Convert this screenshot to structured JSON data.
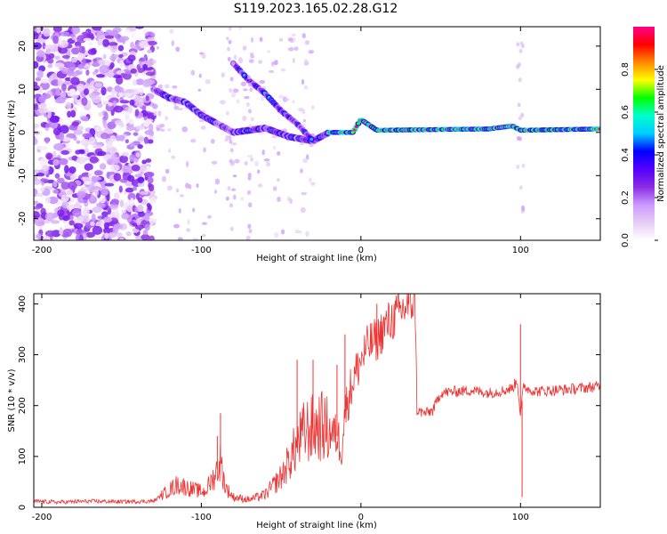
{
  "figure": {
    "title": "S119.2023.165.02.28.G12"
  },
  "chart_data": [
    {
      "type": "heatmap",
      "xlabel": "Height of straight line (km)",
      "ylabel": "Frequency (Hz)",
      "xlim": [
        -205,
        150
      ],
      "ylim": [
        -25,
        24.5
      ],
      "xticks": [
        -200,
        -100,
        0,
        100
      ],
      "yticks": [
        -20,
        -10,
        0,
        10,
        20
      ],
      "colorbar": {
        "label": "Normalized spectral amplitude",
        "range": [
          0,
          1
        ],
        "ticks": [
          0.0,
          0.2,
          0.4,
          0.6,
          0.8
        ],
        "tick_labels": [
          "0.0",
          "0.2",
          "0.4",
          "0.6",
          "0.8"
        ],
        "colormap": [
          "#ffffff",
          "#e6ccf5",
          "#cc99ff",
          "#8a2be2",
          "#5500ff",
          "#0000ff",
          "#00ccff",
          "#00ffcc",
          "#00ff00",
          "#ffff00",
          "#ff8800",
          "#ff0000",
          "#ff0088"
        ]
      },
      "main_track": [
        {
          "x": -130,
          "y": 10
        },
        {
          "x": -120,
          "y": 8
        },
        {
          "x": -110,
          "y": 7
        },
        {
          "x": -100,
          "y": 4
        },
        {
          "x": -90,
          "y": 2
        },
        {
          "x": -80,
          "y": 0
        },
        {
          "x": -60,
          "y": 1
        },
        {
          "x": -45,
          "y": -1
        },
        {
          "x": -30,
          "y": -2
        },
        {
          "x": -20,
          "y": 0
        },
        {
          "x": -5,
          "y": 0
        },
        {
          "x": 0,
          "y": 3
        },
        {
          "x": 10,
          "y": 0.5
        },
        {
          "x": 80,
          "y": 0.8
        },
        {
          "x": 95,
          "y": 1.5
        },
        {
          "x": 100,
          "y": 0.5
        },
        {
          "x": 150,
          "y": 0.8
        }
      ],
      "secondary_track": [
        {
          "x": -80,
          "y": 16
        },
        {
          "x": -70,
          "y": 12
        },
        {
          "x": -60,
          "y": 9
        },
        {
          "x": -50,
          "y": 5
        },
        {
          "x": -40,
          "y": 2
        },
        {
          "x": -30,
          "y": -2
        }
      ]
    },
    {
      "type": "line",
      "xlabel": "Height of straight line (km)",
      "ylabel": "SNR (10 * v/v)",
      "xlim": [
        -205,
        150
      ],
      "ylim": [
        0,
        420
      ],
      "xticks": [
        -200,
        -100,
        0,
        100
      ],
      "yticks": [
        0,
        100,
        200,
        300,
        400
      ],
      "color": "#ee3333",
      "series": [
        {
          "x": [
            -205,
            -190,
            -170,
            -150,
            -130,
            -122,
            -115,
            -105,
            -98,
            -92,
            -88,
            -85,
            -80,
            -70,
            -60,
            -50,
            -42,
            -35,
            -25,
            -15,
            -12,
            -10,
            -5,
            0,
            5,
            10,
            15,
            20,
            25,
            30,
            34,
            35,
            40,
            45,
            50,
            60,
            70,
            80,
            90,
            95,
            98,
            100,
            102,
            105,
            110,
            120,
            130,
            140,
            150
          ],
          "y": [
            12,
            10,
            12,
            11,
            12,
            30,
            45,
            35,
            30,
            60,
            90,
            40,
            20,
            15,
            25,
            60,
            110,
            150,
            160,
            140,
            120,
            190,
            250,
            290,
            320,
            330,
            355,
            370,
            385,
            400,
            405,
            190,
            185,
            190,
            225,
            228,
            230,
            225,
            230,
            235,
            250,
            180,
            240,
            232,
            228,
            230,
            232,
            235,
            238
          ]
        }
      ],
      "spikes": [
        {
          "x": -88,
          "y": 185
        },
        {
          "x": -90,
          "y": 140
        },
        {
          "x": -40,
          "y": 290
        },
        {
          "x": -30,
          "y": 290
        },
        {
          "x": -15,
          "y": 280
        },
        {
          "x": -10,
          "y": 340
        },
        {
          "x": 10,
          "y": 400
        },
        {
          "x": 30,
          "y": 420
        },
        {
          "x": 100,
          "y": 360
        },
        {
          "x": 101,
          "y": 20
        }
      ]
    }
  ]
}
